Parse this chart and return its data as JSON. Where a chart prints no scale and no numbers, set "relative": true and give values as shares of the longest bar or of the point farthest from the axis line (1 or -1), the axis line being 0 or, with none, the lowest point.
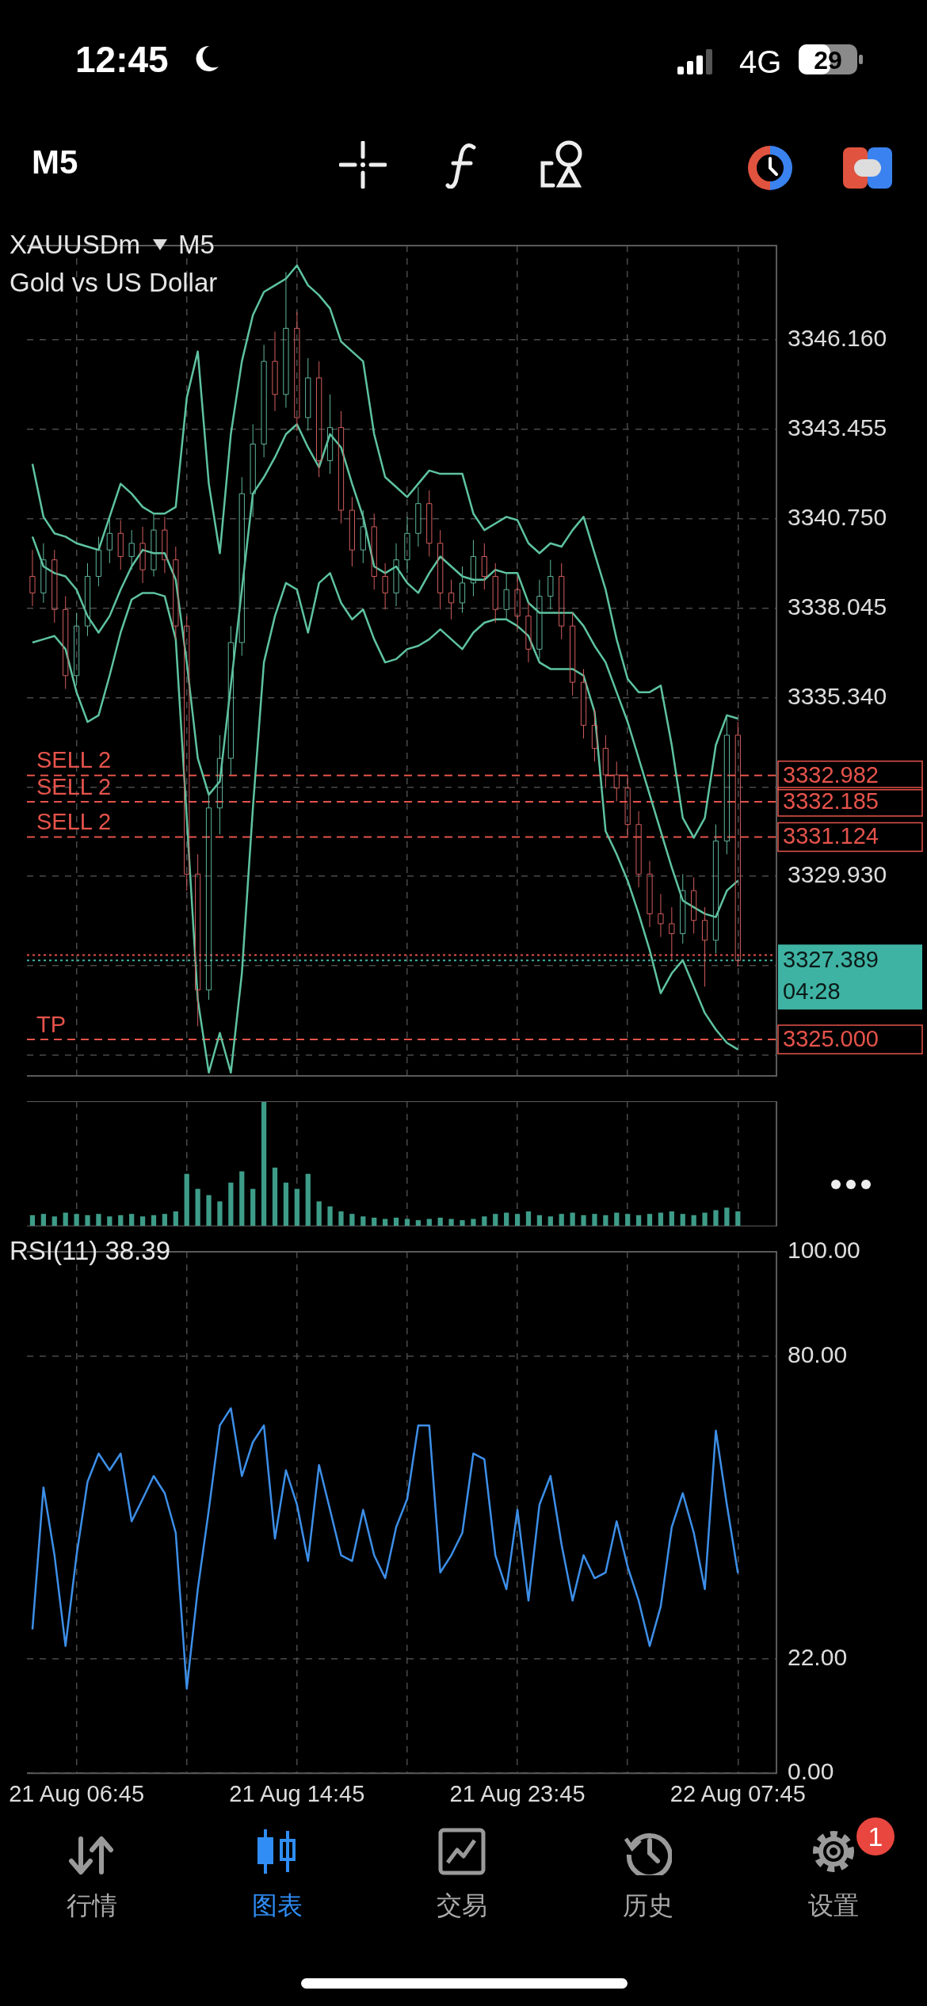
{
  "chart_data": [
    {
      "type": "other",
      "annotations": [
        "12:45",
        "4G",
        "29",
        "M5"
      ]
    },
    {
      "type": "candlestick",
      "title": "XAUUSDm",
      "subtitle": "Gold vs US Dollar",
      "annotations": [
        "M5",
        "SELL 2",
        "SELL 2",
        "SELL 2",
        "TP",
        "04:28"
      ],
      "categories": [
        null,
        null,
        null,
        null,
        null,
        null,
        null,
        null,
        null,
        null,
        null,
        null,
        null,
        null,
        null,
        null,
        null,
        null,
        null,
        null,
        null,
        null,
        null,
        null,
        null,
        null,
        null,
        null,
        null,
        null,
        null,
        null,
        null,
        null,
        null,
        null,
        null,
        null,
        null,
        null,
        null,
        null,
        null,
        null,
        null,
        null,
        null,
        null,
        null,
        null,
        null,
        null,
        null,
        null,
        null,
        null,
        null,
        null,
        null,
        null,
        null,
        null,
        null,
        null,
        null,
        null,
        null,
        null
      ],
      "ohlc": [
        [
          3339.0,
          3339.8,
          3338.1,
          3338.5
        ],
        [
          3338.5,
          3340.0,
          3338.2,
          3339.5
        ],
        [
          3339.5,
          3339.8,
          3337.6,
          3338.0
        ],
        [
          3338.0,
          3338.4,
          3335.6,
          3336.0
        ],
        [
          3336.0,
          3337.9,
          3335.7,
          3337.5
        ],
        [
          3337.5,
          3339.4,
          3337.2,
          3339.0
        ],
        [
          3339.0,
          3340.2,
          3338.7,
          3339.8
        ],
        [
          3339.8,
          3340.8,
          3339.4,
          3340.3
        ],
        [
          3340.3,
          3340.7,
          3339.2,
          3339.6
        ],
        [
          3339.6,
          3340.4,
          3339.2,
          3340.0
        ],
        [
          3340.0,
          3340.5,
          3338.8,
          3339.2
        ],
        [
          3339.2,
          3340.9,
          3339.0,
          3340.4
        ],
        [
          3340.4,
          3340.8,
          3339.1,
          3339.5
        ],
        [
          3339.5,
          3339.9,
          3337.1,
          3337.5
        ],
        [
          3337.5,
          3337.8,
          3329.5,
          3330.0
        ],
        [
          3330.0,
          3330.6,
          3325.4,
          3326.5
        ],
        [
          3326.5,
          3332.5,
          3326.2,
          3332.0
        ],
        [
          3332.0,
          3334.2,
          3331.2,
          3333.5
        ],
        [
          3333.5,
          3337.5,
          3333.0,
          3337.0
        ],
        [
          3337.0,
          3342.0,
          3336.6,
          3341.5
        ],
        [
          3341.5,
          3343.6,
          3340.8,
          3343.0
        ],
        [
          3343.0,
          3346.0,
          3342.6,
          3345.5
        ],
        [
          3345.5,
          3346.4,
          3344.0,
          3344.5
        ],
        [
          3344.5,
          3348.2,
          3344.1,
          3346.5
        ],
        [
          3346.5,
          3347.0,
          3343.4,
          3343.8
        ],
        [
          3343.8,
          3345.6,
          3343.4,
          3345.0
        ],
        [
          3345.0,
          3345.5,
          3342.0,
          3342.5
        ],
        [
          3342.5,
          3344.5,
          3342.1,
          3343.5
        ],
        [
          3343.5,
          3344.0,
          3340.6,
          3341.0
        ],
        [
          3341.0,
          3341.4,
          3339.3,
          3339.8
        ],
        [
          3339.8,
          3341.0,
          3339.4,
          3340.5
        ],
        [
          3340.5,
          3340.9,
          3338.6,
          3339.0
        ],
        [
          3339.0,
          3339.4,
          3338.0,
          3338.5
        ],
        [
          3338.5,
          3340.0,
          3338.1,
          3339.5
        ],
        [
          3339.5,
          3340.8,
          3339.1,
          3340.3
        ],
        [
          3340.3,
          3341.7,
          3339.9,
          3341.2
        ],
        [
          3341.2,
          3341.6,
          3339.6,
          3340.0
        ],
        [
          3340.0,
          3340.4,
          3338.0,
          3338.5
        ],
        [
          3338.5,
          3338.9,
          3337.7,
          3338.2
        ],
        [
          3338.2,
          3339.3,
          3337.9,
          3338.8
        ],
        [
          3338.8,
          3340.1,
          3338.4,
          3339.6
        ],
        [
          3339.6,
          3340.0,
          3338.6,
          3339.0
        ],
        [
          3339.0,
          3339.4,
          3337.6,
          3338.0
        ],
        [
          3338.0,
          3339.1,
          3337.7,
          3338.6
        ],
        [
          3338.6,
          3339.0,
          3337.4,
          3337.8
        ],
        [
          3337.8,
          3338.2,
          3336.4,
          3336.8
        ],
        [
          3336.8,
          3338.9,
          3336.5,
          3338.4
        ],
        [
          3338.4,
          3339.5,
          3338.0,
          3339.0
        ],
        [
          3339.0,
          3339.4,
          3337.1,
          3337.5
        ],
        [
          3337.5,
          3337.9,
          3335.4,
          3335.8
        ],
        [
          3335.8,
          3336.2,
          3334.1,
          3334.5
        ],
        [
          3334.5,
          3335.0,
          3333.4,
          3333.8
        ],
        [
          3333.8,
          3334.2,
          3332.6,
          3333.0
        ],
        [
          3333.0,
          3333.4,
          3332.2,
          3332.6
        ],
        [
          3332.6,
          3333.0,
          3331.1,
          3331.5
        ],
        [
          3331.5,
          3331.9,
          3329.6,
          3330.0
        ],
        [
          3330.0,
          3330.4,
          3328.4,
          3328.8
        ],
        [
          3328.8,
          3329.4,
          3328.1,
          3328.5
        ],
        [
          3328.5,
          3329.0,
          3327.4,
          3328.2
        ],
        [
          3328.2,
          3330.0,
          3327.9,
          3329.5
        ],
        [
          3329.5,
          3329.9,
          3328.2,
          3328.6
        ],
        [
          3328.6,
          3329.0,
          3326.6,
          3328.0
        ],
        [
          3328.0,
          3331.5,
          3327.6,
          3331.0
        ],
        [
          3331.0,
          3334.8,
          3330.6,
          3334.2
        ],
        [
          3334.2,
          3334.6,
          3327.2,
          3327.389
        ],
        null,
        null,
        null
      ],
      "series": [
        {
          "type": "line",
          "color": "#5ec3a0",
          "values": [
            3342.4,
            3340.8,
            3340.3,
            3340.2,
            3340.0,
            3339.9,
            3339.8,
            3340.8,
            3341.8,
            3341.5,
            3341.1,
            3340.9,
            3340.9,
            3341.1,
            3344.4,
            3345.8,
            3341.8,
            3339.7,
            3343.3,
            3345.5,
            3346.9,
            3347.6,
            3347.8,
            3348.0,
            3348.4,
            3347.8,
            3347.5,
            3347.1,
            3346.1,
            3345.8,
            3345.5,
            3343.3,
            3342.0,
            3341.7,
            3341.4,
            3341.8,
            3342.2,
            3342.1,
            3342.1,
            3342.1,
            3340.9,
            3340.4,
            3340.6,
            3340.8,
            3340.7,
            3340.0,
            3339.7,
            3340.0,
            3339.9,
            3340.4,
            3340.8,
            3339.7,
            3338.6,
            3337.1,
            3335.9,
            3335.5,
            3335.5,
            3335.7,
            3333.9,
            3331.7,
            3331.1,
            3331.7,
            3333.9,
            3334.8,
            3334.7,
            null,
            null,
            null
          ]
        },
        {
          "type": "line",
          "color": "#5ec3a0",
          "values": [
            3340.2,
            3339.3,
            3339.1,
            3339.0,
            3338.6,
            3337.8,
            3337.3,
            3337.8,
            3338.6,
            3339.3,
            3339.8,
            3339.7,
            3339.7,
            3338.9,
            3336.4,
            3333.5,
            3332.4,
            3332.8,
            3335.7,
            3338.6,
            3341.5,
            3342.0,
            3342.6,
            3343.3,
            3343.6,
            3342.9,
            3342.3,
            3343.3,
            3342.9,
            3341.8,
            3340.8,
            3339.3,
            3339.1,
            3339.3,
            3338.8,
            3338.5,
            3339.1,
            3339.6,
            3339.3,
            3339.0,
            3338.9,
            3338.9,
            3339.2,
            3339.1,
            3339.1,
            3338.2,
            3337.9,
            3337.9,
            3337.9,
            3337.9,
            3337.5,
            3336.9,
            3336.4,
            3335.5,
            3334.6,
            3333.5,
            3332.4,
            3331.3,
            3330.2,
            3329.2,
            3329.0,
            3328.8,
            3328.7,
            3329.5,
            3329.8,
            null,
            null,
            null
          ]
        },
        {
          "type": "line",
          "color": "#5ec3a0",
          "values": [
            3337.0,
            3337.1,
            3337.2,
            3336.8,
            3335.5,
            3334.6,
            3334.8,
            3336.0,
            3337.3,
            3338.3,
            3338.5,
            3338.5,
            3338.4,
            3337.1,
            3331.7,
            3326.2,
            3324.0,
            3325.2,
            3324.0,
            3327.0,
            3332.0,
            3336.4,
            3337.8,
            3338.8,
            3338.6,
            3337.3,
            3338.8,
            3339.1,
            3338.2,
            3337.7,
            3338.0,
            3337.1,
            3336.4,
            3336.5,
            3336.8,
            3336.9,
            3337.1,
            3337.4,
            3337.1,
            3336.8,
            3337.3,
            3337.6,
            3337.7,
            3337.7,
            3337.5,
            3337.2,
            3336.4,
            3336.2,
            3336.2,
            3336.2,
            3336.0,
            3334.9,
            3331.3,
            3330.6,
            3329.8,
            3328.8,
            3327.7,
            3326.4,
            3327.0,
            3327.4,
            3326.6,
            3325.8,
            3325.3,
            3324.9,
            3324.7,
            null,
            null,
            null
          ]
        }
      ],
      "ylim": [
        3323.9,
        3349.0
      ],
      "yticks": [
        {
          "value": 3324.52,
          "label": null
        },
        {
          "value": 3327.225,
          "label": null
        },
        {
          "value": 3329.93,
          "label": "3329.930"
        },
        {
          "value": 3332.635,
          "label": null
        },
        {
          "value": 3335.34,
          "label": "3335.340"
        },
        {
          "value": 3338.045,
          "label": "3338.045"
        },
        {
          "value": 3340.75,
          "label": "3340.750"
        },
        {
          "value": 3343.455,
          "label": "3343.455"
        },
        {
          "value": 3346.16,
          "label": "3346.160"
        }
      ],
      "ref_lines": [
        {
          "axis": "y",
          "value": 3332.982,
          "label": "3332.982",
          "color": "#e5534b",
          "line_style": "dashed"
        },
        {
          "axis": "y",
          "value": 3332.185,
          "label": "3332.185",
          "color": "#e5534b",
          "line_style": "dashed"
        },
        {
          "axis": "y",
          "value": 3331.124,
          "label": "3331.124",
          "color": "#e5534b",
          "line_style": "dashed"
        },
        {
          "axis": "y",
          "value": 3327.55,
          "color": "#e5534b",
          "line_style": "dotted"
        },
        {
          "axis": "y",
          "value": 3327.389,
          "label": "3327.389",
          "color": "#3fb3a3",
          "line_style": "dotted"
        },
        {
          "axis": "y",
          "value": 3325.0,
          "label": "3325.000",
          "color": "#e5534b",
          "line_style": "dashed"
        }
      ],
      "grid": true,
      "tick_labels": "y"
    },
    {
      "type": "bar",
      "relative": true,
      "color": "#3d9c88",
      "categories": [
        null,
        null,
        null,
        null,
        null,
        null,
        null,
        null,
        null,
        null,
        null,
        null,
        null,
        null,
        null,
        null,
        null,
        null,
        null,
        null,
        null,
        null,
        null,
        null,
        null,
        null,
        null,
        null,
        null,
        null,
        null,
        null,
        null,
        null,
        null,
        null,
        null,
        null,
        null,
        null,
        null,
        null,
        null,
        null,
        null,
        null,
        null,
        null,
        null,
        null,
        null,
        null,
        null,
        null,
        null,
        null,
        null,
        null,
        null,
        null,
        null,
        null,
        null,
        null,
        null,
        null,
        null,
        null
      ],
      "values": [
        0.09,
        0.1,
        0.08,
        0.11,
        0.1,
        0.09,
        0.1,
        0.08,
        0.09,
        0.1,
        0.08,
        0.09,
        0.1,
        0.12,
        0.42,
        0.3,
        0.25,
        0.2,
        0.35,
        0.44,
        0.3,
        1,
        0.47,
        0.35,
        0.3,
        0.42,
        0.2,
        0.16,
        0.12,
        0.1,
        0.08,
        0.07,
        0.06,
        0.07,
        0.06,
        0.05,
        0.06,
        0.07,
        0.06,
        0.05,
        0.06,
        0.08,
        0.1,
        0.11,
        0.1,
        0.12,
        0.09,
        0.08,
        0.1,
        0.11,
        0.09,
        0.1,
        0.09,
        0.11,
        0.1,
        0.09,
        0.1,
        0.11,
        0.12,
        0.1,
        0.09,
        0.11,
        0.13,
        0.15,
        0.12,
        null,
        null,
        null
      ],
      "grid": "x",
      "tick_labels": false
    },
    {
      "type": "line",
      "title": "RSI(11) 38.39",
      "categories": [
        null,
        null,
        null,
        null,
        "21 Aug 06:45",
        null,
        null,
        null,
        null,
        null,
        null,
        null,
        null,
        null,
        null,
        null,
        null,
        null,
        null,
        null,
        null,
        null,
        null,
        null,
        "21 Aug 14:45",
        null,
        null,
        null,
        null,
        null,
        null,
        null,
        null,
        null,
        null,
        null,
        null,
        null,
        null,
        null,
        null,
        null,
        null,
        null,
        "21 Aug 23:45",
        null,
        null,
        null,
        null,
        null,
        null,
        null,
        null,
        null,
        null,
        null,
        null,
        null,
        null,
        null,
        null,
        null,
        null,
        null,
        "22 Aug 07:45",
        null,
        null,
        null
      ],
      "series": [
        {
          "color": "#3d8fe8",
          "values": [
            27.6,
            54.8,
            41.8,
            24.4,
            41.8,
            55.9,
            61.3,
            58.1,
            61.3,
            48.3,
            52.6,
            57.0,
            53.7,
            46.1,
            16.2,
            35.3,
            50.5,
            66.7,
            70.0,
            57.0,
            63.5,
            66.7,
            45.0,
            58.1,
            51.5,
            40.7,
            59.1,
            50.5,
            41.8,
            40.7,
            50.5,
            41.8,
            37.4,
            47.2,
            52.6,
            66.7,
            66.7,
            38.5,
            41.8,
            46.1,
            61.3,
            60.2,
            41.8,
            35.3,
            50.5,
            33.1,
            51.5,
            57.0,
            43.9,
            33.1,
            41.8,
            37.4,
            38.5,
            48.3,
            39.6,
            33.1,
            24.4,
            32.0,
            47.2,
            53.7,
            46.1,
            35.3,
            65.7,
            51.5,
            38.39,
            null,
            null,
            null
          ]
        }
      ],
      "ylim": [
        0,
        100
      ],
      "yticks": [
        {
          "value": 0,
          "label": "0.00"
        },
        {
          "value": 22,
          "label": "22.00"
        },
        {
          "value": 80,
          "label": "80.00"
        },
        {
          "value": 100,
          "label": "100.00"
        }
      ],
      "grid": true
    },
    {
      "type": "other",
      "annotations": [
        "行情",
        "图表",
        "交易",
        "历史",
        "设置",
        "1"
      ]
    }
  ]
}
